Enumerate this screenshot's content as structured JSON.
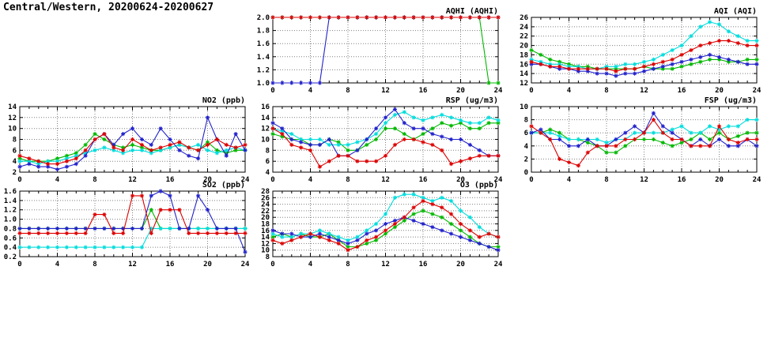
{
  "header": {
    "title": "Central/Western, 20200624-20200627"
  },
  "colors": {
    "red": "#dd0000",
    "green": "#00b800",
    "blue": "#2222cc",
    "cyan": "#00dddd",
    "axis": "#000000",
    "grid": "#808080"
  },
  "chart_data": [
    {
      "type": "line",
      "title": "AQHI (AQHI)",
      "xlim": [
        0,
        24
      ],
      "xticks": [
        0,
        4,
        8,
        12,
        16,
        20,
        24
      ],
      "ylim": [
        1.0,
        2.0
      ],
      "yticks": [
        1.0,
        1.2,
        1.4,
        1.6,
        1.8,
        2.0
      ],
      "ydecimals": 1,
      "grid_on": true,
      "legend": "none",
      "series": [
        {
          "name": "green",
          "color_key": "green",
          "values": [
            2,
            2,
            2,
            2,
            2,
            2,
            2,
            2,
            2,
            2,
            2,
            2,
            2,
            2,
            2,
            2,
            2,
            2,
            2,
            2,
            2,
            2,
            2,
            1,
            1
          ]
        },
        {
          "name": "cyan",
          "color_key": "cyan",
          "values": [
            2,
            2,
            2,
            2,
            2,
            2,
            2,
            2,
            2,
            2,
            2,
            2,
            2,
            2,
            2,
            2,
            2,
            2,
            2,
            2,
            2,
            2,
            2,
            2,
            2
          ]
        },
        {
          "name": "blue",
          "color_key": "blue",
          "values": [
            1,
            1,
            1,
            1,
            1,
            1,
            2,
            2,
            2,
            2,
            2,
            2,
            2,
            2,
            2,
            2,
            2,
            2,
            2,
            2,
            2,
            2,
            2,
            2,
            2
          ]
        },
        {
          "name": "red",
          "color_key": "red",
          "values": [
            2,
            2,
            2,
            2,
            2,
            2,
            2,
            2,
            2,
            2,
            2,
            2,
            2,
            2,
            2,
            2,
            2,
            2,
            2,
            2,
            2,
            2,
            2,
            2,
            2
          ]
        }
      ]
    },
    {
      "type": "line",
      "title": "AQI (AQI)",
      "xlim": [
        0,
        24
      ],
      "xticks": [
        0,
        4,
        8,
        12,
        16,
        20,
        24
      ],
      "ylim": [
        12,
        26
      ],
      "yticks": [
        12,
        14,
        16,
        18,
        20,
        22,
        24,
        26
      ],
      "ydecimals": 0,
      "grid_on": true,
      "legend": "none",
      "series": [
        {
          "name": "green",
          "color_key": "green",
          "values": [
            19,
            18,
            17,
            16.5,
            16,
            15.5,
            15.5,
            15,
            15,
            15,
            15,
            15,
            15.5,
            15,
            15,
            15,
            15.5,
            16,
            16.5,
            17,
            17,
            16.5,
            16.5,
            17,
            17
          ]
        },
        {
          "name": "cyan",
          "color_key": "cyan",
          "values": [
            17,
            16.5,
            16,
            16,
            15.5,
            15.5,
            15,
            15,
            15.5,
            15.5,
            16,
            16,
            16.5,
            17,
            18,
            19,
            20,
            22,
            24,
            25,
            24.5,
            23,
            22,
            21,
            21
          ]
        },
        {
          "name": "blue",
          "color_key": "blue",
          "values": [
            16,
            16,
            15.5,
            15,
            15,
            14.5,
            14.5,
            14,
            14,
            13.5,
            14,
            14,
            14.5,
            15,
            15.5,
            16,
            16.5,
            17,
            17.5,
            18,
            17.5,
            17,
            16.5,
            16,
            16
          ]
        },
        {
          "name": "red",
          "color_key": "red",
          "values": [
            16.5,
            16,
            15.5,
            15.5,
            15,
            15,
            15,
            15,
            15,
            14.5,
            15,
            15,
            15.5,
            16,
            16.5,
            17,
            18,
            19,
            20,
            20.5,
            21,
            21,
            20.5,
            20,
            20
          ]
        }
      ]
    },
    {
      "type": "line",
      "title": "NO2 (ppb)",
      "xlim": [
        0,
        24
      ],
      "xticks": [
        0,
        4,
        8,
        12,
        16,
        20,
        24
      ],
      "ylim": [
        2,
        14
      ],
      "yticks": [
        2,
        4,
        6,
        8,
        10,
        12,
        14
      ],
      "ydecimals": 0,
      "grid_on": true,
      "legend": "none",
      "series": [
        {
          "name": "green",
          "color_key": "green",
          "values": [
            4.5,
            4,
            4,
            4,
            4.5,
            5,
            5.5,
            7,
            9,
            8,
            7,
            6.5,
            7,
            6.5,
            6,
            6,
            6.5,
            7,
            6.5,
            6,
            7.5,
            6,
            5.5,
            6,
            6
          ]
        },
        {
          "name": "cyan",
          "color_key": "cyan",
          "values": [
            4,
            4,
            3.5,
            4,
            4,
            4.5,
            5,
            5.5,
            6,
            6.5,
            6,
            5.5,
            6,
            6,
            5.5,
            6,
            6.5,
            7,
            6.5,
            7,
            6,
            5.5,
            6,
            6.5,
            6
          ]
        },
        {
          "name": "blue",
          "color_key": "blue",
          "values": [
            3,
            3.5,
            3,
            3,
            2.5,
            3,
            3.5,
            5,
            8,
            9,
            7,
            9,
            10,
            8,
            7,
            10,
            8,
            6,
            5,
            4.5,
            12,
            8,
            5,
            9,
            6
          ]
        },
        {
          "name": "red",
          "color_key": "red",
          "values": [
            5,
            4.5,
            4,
            3.5,
            3.5,
            4,
            4.5,
            6,
            8,
            9,
            6.5,
            6,
            8,
            7,
            6,
            6.5,
            7,
            7.5,
            6.5,
            6,
            7,
            8,
            7,
            6.5,
            7
          ]
        }
      ]
    },
    {
      "type": "line",
      "title": "RSP (ug/m3)",
      "xlim": [
        0,
        24
      ],
      "xticks": [
        0,
        4,
        8,
        12,
        16,
        20,
        24
      ],
      "ylim": [
        4,
        16
      ],
      "yticks": [
        4,
        6,
        8,
        10,
        12,
        14,
        16
      ],
      "ydecimals": 0,
      "grid_on": true,
      "legend": "none",
      "series": [
        {
          "name": "green",
          "color_key": "green",
          "values": [
            11,
            10.5,
            10,
            10,
            9,
            9,
            10,
            9.5,
            8,
            8,
            9,
            10,
            12,
            12,
            11,
            10,
            11,
            12,
            13,
            12.5,
            13,
            12,
            12,
            13,
            13
          ]
        },
        {
          "name": "cyan",
          "color_key": "cyan",
          "values": [
            12,
            11.5,
            11,
            10,
            10,
            10,
            9,
            9,
            9,
            9.5,
            10,
            11,
            13,
            14.5,
            15,
            14,
            13.5,
            14,
            14.5,
            14,
            13.5,
            13,
            13,
            14,
            13.5
          ]
        },
        {
          "name": "blue",
          "color_key": "blue",
          "values": [
            13,
            12,
            10,
            9.5,
            9,
            9,
            10,
            7,
            7,
            8,
            10,
            12,
            14,
            15.5,
            13,
            12,
            12,
            11,
            10.5,
            10,
            10,
            9,
            8,
            7,
            7
          ]
        },
        {
          "name": "red",
          "color_key": "red",
          "values": [
            12,
            11,
            9,
            8.5,
            8,
            5,
            6,
            7,
            7,
            6,
            6,
            6,
            7,
            9,
            10,
            10,
            9.5,
            9,
            8,
            5.5,
            6,
            6.5,
            7,
            7,
            7
          ]
        }
      ]
    },
    {
      "type": "line",
      "title": "FSP (ug/m3)",
      "xlim": [
        0,
        24
      ],
      "xticks": [
        0,
        4,
        8,
        12,
        16,
        20,
        24
      ],
      "ylim": [
        0,
        10
      ],
      "yticks": [
        0,
        2,
        4,
        6,
        8,
        10
      ],
      "ydecimals": 0,
      "grid_on": true,
      "legend": "none",
      "series": [
        {
          "name": "green",
          "color_key": "green",
          "values": [
            6,
            6,
            6.5,
            6,
            5,
            5,
            4.5,
            4,
            3,
            3,
            4,
            5,
            5,
            5,
            4.5,
            4,
            4.5,
            5,
            6,
            5,
            6,
            5,
            5.5,
            6,
            6
          ]
        },
        {
          "name": "cyan",
          "color_key": "cyan",
          "values": [
            6,
            6,
            6,
            5.5,
            5,
            5,
            5,
            5,
            4.5,
            5,
            5,
            6,
            6,
            6,
            6,
            6.5,
            7,
            6,
            6,
            7,
            6.5,
            7,
            7,
            8,
            8
          ]
        },
        {
          "name": "blue",
          "color_key": "blue",
          "values": [
            6,
            6.5,
            5,
            5,
            4,
            4,
            5,
            4,
            4,
            5,
            6,
            7,
            6,
            9,
            7,
            6,
            5,
            4,
            5,
            4,
            5,
            4,
            4,
            5,
            4
          ]
        },
        {
          "name": "red",
          "color_key": "red",
          "values": [
            7,
            6,
            5,
            2,
            1.5,
            1,
            3,
            4,
            4,
            4,
            5,
            5,
            6,
            8,
            6,
            5,
            5,
            4,
            4,
            4,
            7,
            5,
            4.5,
            5,
            5
          ]
        }
      ]
    },
    {
      "type": "line",
      "title": "SO2 (ppb)",
      "xlim": [
        0,
        24
      ],
      "xticks": [
        0,
        4,
        8,
        12,
        16,
        20,
        24
      ],
      "ylim": [
        0.2,
        1.6
      ],
      "yticks": [
        0.2,
        0.4,
        0.6,
        0.8,
        1.0,
        1.2,
        1.4,
        1.6
      ],
      "ydecimals": 1,
      "grid_on": true,
      "legend": "none",
      "series": [
        {
          "name": "green",
          "color_key": "green",
          "values": [
            0.8,
            0.8,
            0.8,
            0.8,
            0.8,
            0.8,
            0.8,
            0.8,
            0.8,
            0.8,
            0.8,
            0.8,
            0.8,
            0.8,
            1.2,
            0.8,
            0.8,
            0.8,
            0.8,
            0.8,
            0.8,
            0.8,
            0.8,
            0.8,
            0.8
          ]
        },
        {
          "name": "cyan",
          "color_key": "cyan",
          "values": [
            0.4,
            0.4,
            0.4,
            0.4,
            0.4,
            0.4,
            0.4,
            0.4,
            0.4,
            0.4,
            0.4,
            0.4,
            0.4,
            0.4,
            0.8,
            0.8,
            0.8,
            0.8,
            0.8,
            0.8,
            0.8,
            0.8,
            0.8,
            0.8,
            0.8
          ]
        },
        {
          "name": "blue",
          "color_key": "blue",
          "values": [
            0.8,
            0.8,
            0.8,
            0.8,
            0.8,
            0.8,
            0.8,
            0.8,
            0.8,
            0.8,
            0.8,
            0.8,
            0.8,
            0.8,
            1.5,
            1.6,
            1.5,
            0.8,
            0.8,
            1.5,
            1.2,
            0.8,
            0.8,
            0.8,
            0.3
          ]
        },
        {
          "name": "red",
          "color_key": "red",
          "values": [
            0.7,
            0.7,
            0.7,
            0.7,
            0.7,
            0.7,
            0.7,
            0.7,
            1.1,
            1.1,
            0.7,
            0.7,
            1.5,
            1.5,
            0.7,
            1.2,
            1.2,
            1.2,
            0.7,
            0.7,
            0.7,
            0.7,
            0.7,
            0.7,
            0.7
          ]
        }
      ]
    },
    {
      "type": "line",
      "title": "O3 (ppb)",
      "xlim": [
        0,
        24
      ],
      "xticks": [
        0,
        4,
        8,
        12,
        16,
        20,
        24
      ],
      "ylim": [
        8,
        28
      ],
      "yticks": [
        8,
        10,
        12,
        14,
        16,
        18,
        20,
        22,
        24,
        26,
        28
      ],
      "ydecimals": 0,
      "grid_on": true,
      "legend": "none",
      "series": [
        {
          "name": "green",
          "color_key": "green",
          "values": [
            14,
            15,
            14,
            15,
            14,
            14,
            15,
            13,
            11,
            11,
            12,
            13,
            15,
            17,
            19,
            21,
            22,
            21,
            20,
            18,
            16,
            14,
            12,
            11,
            11
          ]
        },
        {
          "name": "cyan",
          "color_key": "cyan",
          "values": [
            15,
            14,
            14,
            15,
            15,
            16,
            15,
            14,
            13,
            14,
            16,
            18,
            21,
            26,
            27,
            27,
            26,
            25,
            26,
            25,
            22,
            20,
            17,
            15,
            14
          ]
        },
        {
          "name": "blue",
          "color_key": "blue",
          "values": [
            16,
            15,
            15,
            14,
            14,
            15,
            14,
            13,
            12,
            13,
            15,
            16,
            18,
            19,
            20,
            19,
            18,
            17,
            16,
            15,
            14,
            13,
            12,
            11,
            10
          ]
        },
        {
          "name": "red",
          "color_key": "red",
          "values": [
            13,
            12,
            13,
            14,
            15,
            14,
            13,
            12,
            10,
            11,
            13,
            14,
            16,
            18,
            20,
            23,
            25,
            24,
            23,
            21,
            18,
            16,
            14,
            15,
            14
          ]
        }
      ]
    }
  ]
}
